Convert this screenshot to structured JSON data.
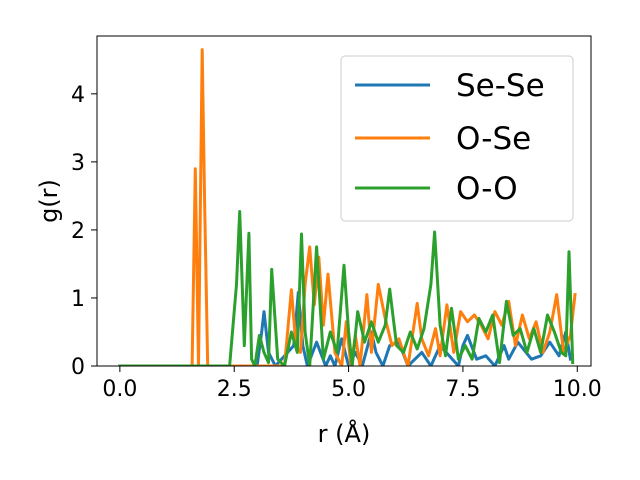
{
  "chart_data": {
    "type": "line",
    "title": "",
    "xlabel": "r (Å)",
    "ylabel": "g(r)",
    "xlim": [
      -0.5,
      10.3
    ],
    "ylim": [
      0,
      4.85
    ],
    "xticks": [
      0.0,
      2.5,
      5.0,
      7.5,
      10.0
    ],
    "xtick_labels": [
      "0.0",
      "2.5",
      "5.0",
      "7.5",
      "10.0"
    ],
    "yticks": [
      0,
      1,
      2,
      3,
      4
    ],
    "ytick_labels": [
      "0",
      "1",
      "2",
      "3",
      "4"
    ],
    "grid": false,
    "legend_position": "upper-right",
    "series": [
      {
        "name": "Se-Se",
        "color": "#1f77b4",
        "x": [
          0,
          0.5,
          1.0,
          1.5,
          2.0,
          2.5,
          3.0,
          3.1,
          3.15,
          3.25,
          3.4,
          3.8,
          3.9,
          4.0,
          4.1,
          4.3,
          4.5,
          4.6,
          4.7,
          4.85,
          5.0,
          5.15,
          5.3,
          5.5,
          5.6,
          5.75,
          5.9,
          6.1,
          6.3,
          6.6,
          6.8,
          7.0,
          7.2,
          7.4,
          7.5,
          7.6,
          7.8,
          8.0,
          8.2,
          8.4,
          8.5,
          8.7,
          9.0,
          9.2,
          9.4,
          9.6,
          9.75,
          9.85
        ],
        "y": [
          0,
          0,
          0,
          0,
          0,
          0,
          0,
          0.5,
          0.8,
          0.2,
          0,
          0.3,
          1.08,
          0.3,
          0,
          0.35,
          0,
          0.15,
          0,
          0.4,
          0,
          0.2,
          0,
          0.5,
          0.2,
          0,
          0.3,
          0.35,
          0,
          0.2,
          0,
          0.3,
          0.15,
          0,
          0.3,
          0.45,
          0.1,
          0.15,
          0,
          0.3,
          0.1,
          0.35,
          0.1,
          0.15,
          0.35,
          0.15,
          0.5,
          0.1
        ]
      },
      {
        "name": "O-Se",
        "color": "#ff7f0e",
        "x": [
          0,
          0.5,
          1.0,
          1.5,
          1.58,
          1.65,
          1.72,
          1.8,
          1.85,
          1.92,
          2.0,
          2.5,
          3.0,
          3.6,
          3.75,
          3.85,
          3.95,
          4.05,
          4.15,
          4.25,
          4.35,
          4.45,
          4.55,
          4.7,
          4.85,
          4.95,
          5.05,
          5.15,
          5.25,
          5.4,
          5.5,
          5.65,
          5.8,
          5.95,
          6.1,
          6.3,
          6.5,
          6.6,
          6.75,
          6.9,
          7.0,
          7.15,
          7.3,
          7.45,
          7.6,
          7.75,
          7.9,
          8.05,
          8.2,
          8.35,
          8.5,
          8.65,
          8.8,
          8.95,
          9.1,
          9.25,
          9.4,
          9.55,
          9.7,
          9.85,
          9.95
        ],
        "y": [
          0,
          0,
          0,
          0,
          0,
          2.9,
          0,
          4.65,
          2.5,
          0,
          0,
          0,
          0,
          0,
          1.12,
          0.3,
          0.2,
          1.2,
          1.75,
          0.9,
          1.6,
          0.6,
          1.35,
          0.2,
          0,
          0.65,
          0,
          0.45,
          0,
          1.05,
          0.2,
          1.2,
          0.7,
          0.3,
          0.4,
          0,
          0.92,
          0.4,
          0.15,
          0.55,
          0.15,
          0.9,
          0.2,
          0.8,
          0.65,
          0.75,
          0.6,
          0.4,
          0.8,
          0.6,
          0.95,
          0.3,
          0.75,
          0.4,
          0.65,
          0.2,
          0.5,
          1.05,
          0.2,
          0.45,
          1.05
        ]
      },
      {
        "name": "O-O",
        "color": "#2ca02c",
        "x": [
          0,
          0.5,
          1.0,
          1.5,
          2.0,
          2.4,
          2.55,
          2.62,
          2.72,
          2.82,
          2.88,
          2.95,
          3.05,
          3.15,
          3.25,
          3.32,
          3.45,
          3.6,
          3.75,
          3.88,
          3.97,
          4.05,
          4.15,
          4.3,
          4.45,
          4.6,
          4.75,
          4.9,
          5.0,
          5.08,
          5.2,
          5.35,
          5.5,
          5.65,
          5.8,
          5.9,
          6.05,
          6.2,
          6.35,
          6.5,
          6.65,
          6.8,
          6.88,
          7.0,
          7.12,
          7.25,
          7.4,
          7.55,
          7.7,
          7.85,
          8.0,
          8.15,
          8.3,
          8.45,
          8.6,
          8.75,
          8.9,
          9.05,
          9.2,
          9.35,
          9.5,
          9.65,
          9.75,
          9.82,
          9.9
        ],
        "y": [
          0,
          0,
          0,
          0,
          0,
          0,
          1.2,
          2.27,
          0.3,
          1.95,
          0.1,
          0,
          0.45,
          0.2,
          0.05,
          1.42,
          0.1,
          0,
          0.5,
          0.2,
          1.94,
          0.5,
          0,
          1.75,
          0.1,
          0.5,
          0.2,
          1.48,
          0.5,
          0,
          0.8,
          0.35,
          0.65,
          0.35,
          0.6,
          1.13,
          0.3,
          0.2,
          0.5,
          0.25,
          0.55,
          1.2,
          1.97,
          0.6,
          0.15,
          0.85,
          0.1,
          0.3,
          0.1,
          0.7,
          0.5,
          0.75,
          0.05,
          0.95,
          0.45,
          0.55,
          0.2,
          0.55,
          0.2,
          0.75,
          0.5,
          0.2,
          0.15,
          1.68,
          0.05
        ]
      }
    ]
  }
}
